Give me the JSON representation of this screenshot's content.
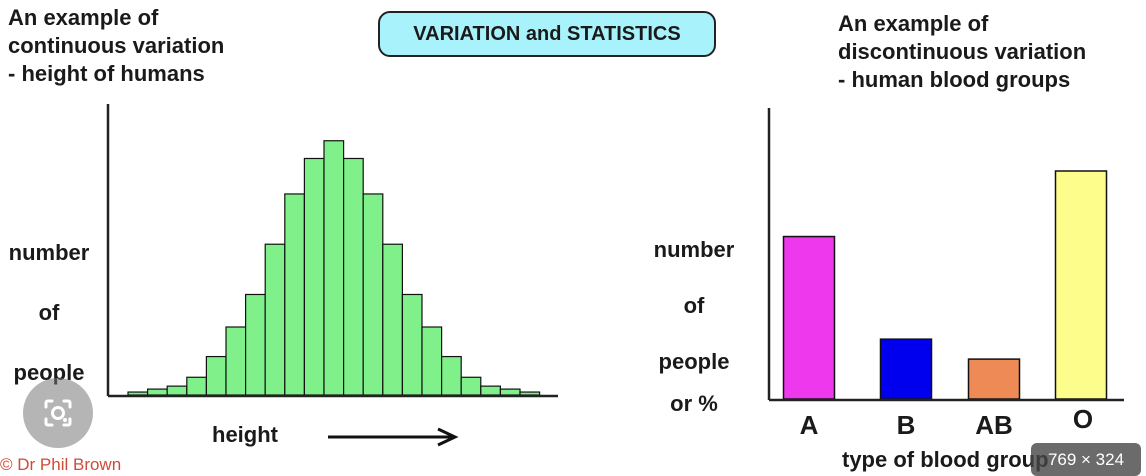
{
  "header": {
    "title": "VARIATION and STATISTICS"
  },
  "left_caption": "An example of\ncontinuous variation\n- height of humans",
  "right_caption": "An example of\ndiscontinuous variation\n- human blood groups",
  "credit": "© Dr Phil Brown",
  "image_dims": "769 × 324",
  "colors": {
    "histogram": "#7ff08a",
    "title_bg": "#a8f3fb",
    "bar_A": "#ee38ee",
    "bar_B": "#0000ee",
    "bar_AB": "#ee8a55",
    "bar_O": "#fdfd8c"
  },
  "chart_data": [
    {
      "type": "bar",
      "title": "An example of continuous variation - height of humans",
      "xlabel": "height",
      "xlabel_arrow": "→",
      "ylabel": [
        "number",
        "of",
        "people"
      ],
      "values": [
        1,
        2,
        3,
        6,
        13,
        23,
        34,
        51,
        68,
        80,
        86,
        80,
        68,
        51,
        34,
        23,
        13,
        6,
        3,
        2,
        1
      ],
      "ylim": [
        0,
        92
      ],
      "grid": false
    },
    {
      "type": "bar",
      "title": "An example of discontinuous variation - human blood groups",
      "categories": [
        "A",
        "B",
        "AB",
        "O"
      ],
      "values": [
        57,
        21,
        14,
        80
      ],
      "xlabel": "type of blood group",
      "ylabel": [
        "number",
        "of",
        "people"
      ],
      "ylabel_unit": "or %",
      "ylim": [
        0,
        100
      ],
      "grid": false
    }
  ]
}
